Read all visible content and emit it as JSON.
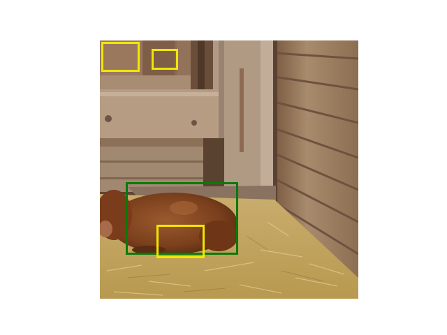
{
  "boxes": [
    {
      "label": "",
      "color": "#0a7a0a"
    },
    {
      "label": "",
      "color": "#f2e600"
    },
    {
      "label": "",
      "color": "#f2e600"
    },
    {
      "label": "",
      "color": "#f2e600"
    }
  ]
}
